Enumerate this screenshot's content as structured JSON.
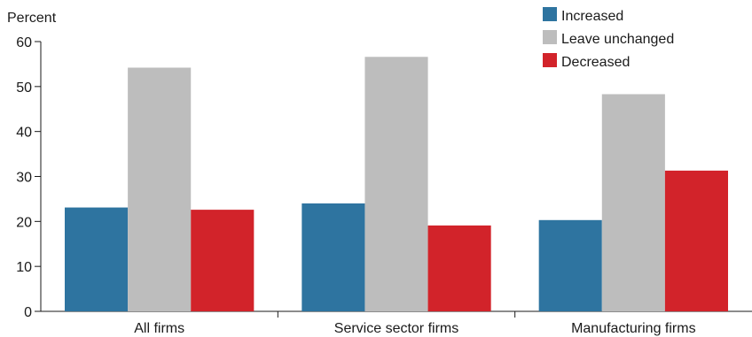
{
  "chart_data": {
    "type": "bar",
    "ylabel": "Percent",
    "ylim": [
      0,
      60
    ],
    "yticks": [
      0,
      10,
      20,
      30,
      40,
      50,
      60
    ],
    "categories": [
      "All firms",
      "Service sector firms",
      "Manufacturing firms"
    ],
    "series": [
      {
        "name": "Increased",
        "color": "#2e74a0",
        "values": [
          23.1,
          24.0,
          20.3
        ]
      },
      {
        "name": "Leave unchanged",
        "color": "#bdbdbd",
        "values": [
          54.2,
          56.6,
          48.3
        ]
      },
      {
        "name": "Decreased",
        "color": "#d2232a",
        "values": [
          22.6,
          19.1,
          31.3
        ]
      }
    ],
    "legend_position": "top-right",
    "grid": false
  }
}
